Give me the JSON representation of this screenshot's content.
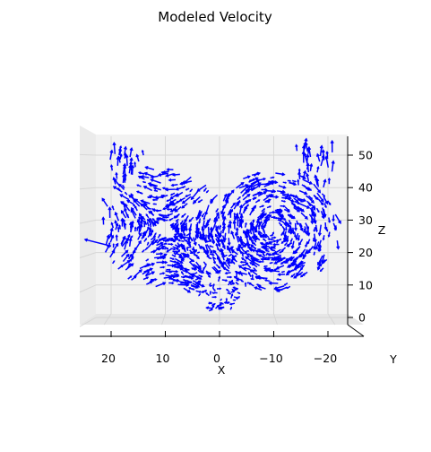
{
  "chart_data": {
    "type": "quiver3d",
    "title": "Modeled Velocity",
    "xlabel": "X",
    "ylabel": "Y",
    "zlabel": "Z",
    "xticks": [
      20,
      10,
      0,
      -10,
      -20
    ],
    "xtick_labels": [
      "20",
      "10",
      "0",
      "−10",
      "−20"
    ],
    "zticks": [
      0,
      10,
      20,
      30,
      40,
      50
    ],
    "zlim": [
      -3,
      53
    ],
    "xlim": [
      25,
      -25
    ],
    "grid": true,
    "view": "looking along Y axis",
    "arrow_color": "#0000ff",
    "description_of_data": "lorenz-attractor-shaped velocity field, two lobes"
  }
}
